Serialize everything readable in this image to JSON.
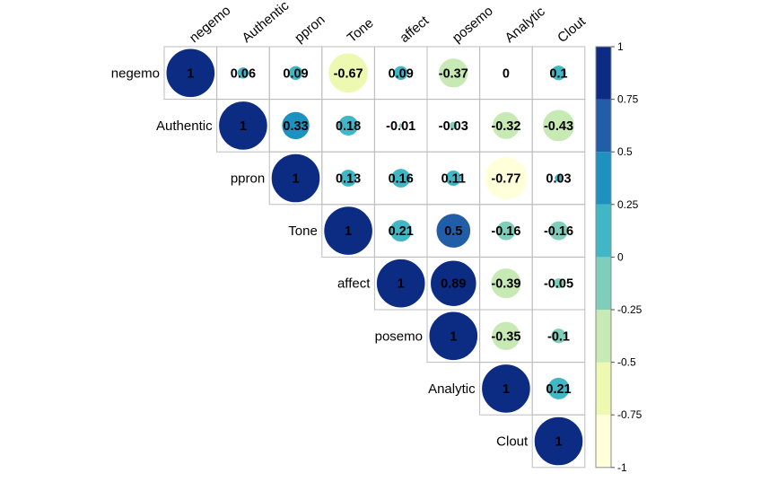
{
  "chart_data": {
    "type": "heatmap",
    "variables": [
      "negemo",
      "Authentic",
      "ppron",
      "Tone",
      "affect",
      "posemo",
      "Analytic",
      "Clout"
    ],
    "matrix": [
      [
        1,
        0.06,
        0.09,
        -0.67,
        0.09,
        -0.37,
        0,
        0.1
      ],
      [
        null,
        1,
        0.33,
        0.18,
        -0.01,
        -0.03,
        -0.32,
        -0.43
      ],
      [
        null,
        null,
        1,
        0.13,
        0.16,
        0.11,
        -0.77,
        0.03
      ],
      [
        null,
        null,
        null,
        1,
        0.21,
        0.5,
        -0.16,
        -0.16
      ],
      [
        null,
        null,
        null,
        null,
        1,
        0.89,
        -0.39,
        -0.05
      ],
      [
        null,
        null,
        null,
        null,
        null,
        1,
        -0.35,
        -0.1
      ],
      [
        null,
        null,
        null,
        null,
        null,
        null,
        1,
        0.21
      ],
      [
        null,
        null,
        null,
        null,
        null,
        null,
        null,
        1
      ]
    ],
    "value_labels": [
      [
        "1",
        "0.06",
        "0.09",
        "-0.67",
        "0.09",
        "-0.37",
        "0",
        "0.1"
      ],
      [
        null,
        "1",
        "0.33",
        "0.18",
        "-0.01",
        "-0.03",
        "-0.32",
        "-0.43"
      ],
      [
        null,
        null,
        "1",
        "0.13",
        "0.16",
        "0.11",
        "-0.77",
        "0.03"
      ],
      [
        null,
        null,
        null,
        "1",
        "0.21",
        "0.5",
        "-0.16",
        "-0.16"
      ],
      [
        null,
        null,
        null,
        null,
        "1",
        "0.89",
        "-0.39",
        "-0.05"
      ],
      [
        null,
        null,
        null,
        null,
        null,
        "1",
        "-0.35",
        "-0.1"
      ],
      [
        null,
        null,
        null,
        null,
        null,
        null,
        "1",
        "0.21"
      ],
      [
        null,
        null,
        null,
        null,
        null,
        null,
        null,
        "1"
      ]
    ],
    "shape": "upper-triangle circles sized by |r|",
    "colorbar": {
      "range": [
        -1,
        1
      ],
      "ticks": [
        "1",
        "0.75",
        "0.5",
        "0.25",
        "0",
        "-0.25",
        "-0.5",
        "-0.75",
        "-1"
      ],
      "colors": [
        "#FFFFD9",
        "#EDF8B1",
        "#C7E9B4",
        "#7FCDBB",
        "#41B6C4",
        "#1D91C0",
        "#225EA8",
        "#0C2C84"
      ],
      "position": "right"
    },
    "grid": true
  }
}
